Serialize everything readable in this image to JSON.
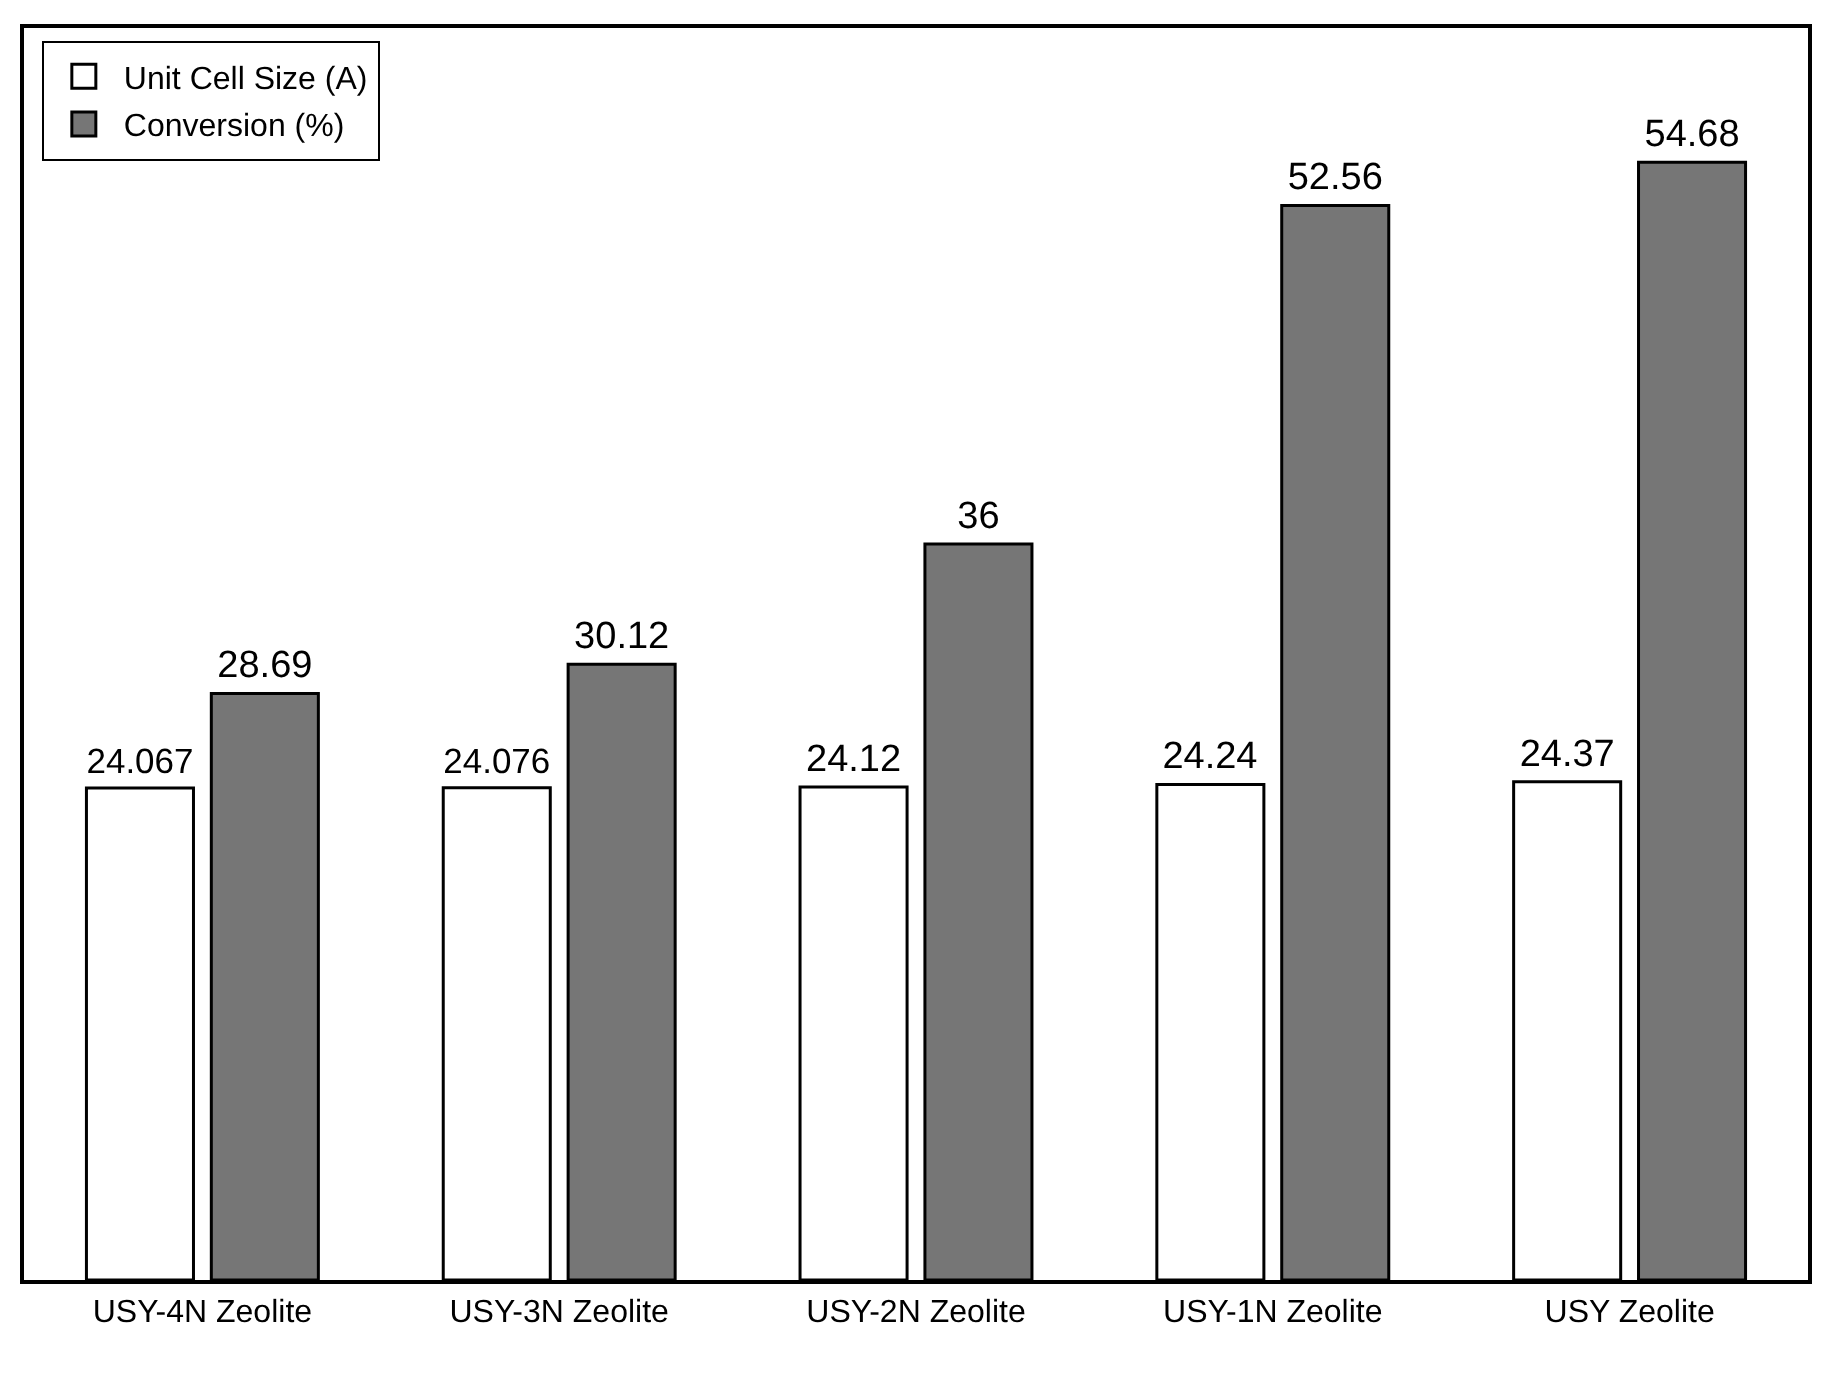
{
  "chart_data": {
    "type": "bar",
    "categories": [
      "USY-4N Zeolite",
      "USY-3N Zeolite",
      "USY-2N Zeolite",
      "USY-1N Zeolite",
      "USY Zeolite"
    ],
    "series": [
      {
        "name": "Unit Cell Size (A)",
        "color": "#ffffff",
        "values": [
          24.067,
          24.076,
          24.12,
          24.24,
          24.37
        ]
      },
      {
        "name": "Conversion (%)",
        "color": "#767676",
        "values": [
          28.69,
          30.12,
          36,
          52.56,
          54.68
        ]
      }
    ],
    "data_labels": true,
    "legend": "top left",
    "tick_labels": "x"
  }
}
